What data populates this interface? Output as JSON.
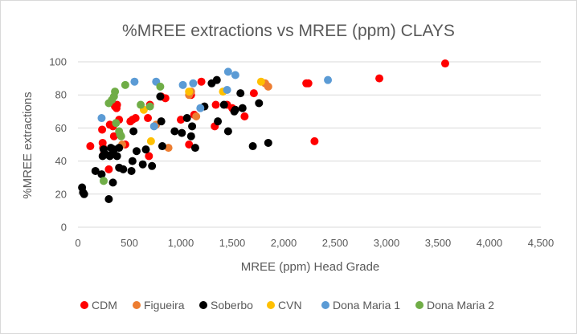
{
  "chart_data": {
    "type": "scatter",
    "title": "%MREE extractions vs MREE (ppm) CLAYS",
    "xlabel": "MREE (ppm) Head Grade",
    "ylabel": "%MREE extractions",
    "xlim": [
      0,
      4500
    ],
    "ylim": [
      0,
      100
    ],
    "x_ticks": [
      "0",
      "500",
      "1,000",
      "1,500",
      "2,000",
      "2,500",
      "3,000",
      "3,500",
      "4,000",
      "4,500"
    ],
    "y_ticks": [
      "0",
      "20",
      "40",
      "60",
      "80",
      "100"
    ],
    "grid": true,
    "legend_position": "bottom",
    "series": [
      {
        "name": "CDM",
        "color": "#ff0000",
        "points": [
          [
            120,
            49
          ],
          [
            235,
            59
          ],
          [
            240,
            51
          ],
          [
            245,
            48
          ],
          [
            250,
            44
          ],
          [
            300,
            35
          ],
          [
            310,
            62
          ],
          [
            340,
            61
          ],
          [
            350,
            55
          ],
          [
            360,
            73
          ],
          [
            375,
            72
          ],
          [
            380,
            74
          ],
          [
            400,
            65
          ],
          [
            460,
            50
          ],
          [
            510,
            64
          ],
          [
            530,
            65
          ],
          [
            560,
            66
          ],
          [
            680,
            66
          ],
          [
            690,
            43
          ],
          [
            700,
            74
          ],
          [
            810,
            79
          ],
          [
            850,
            78
          ],
          [
            1000,
            65
          ],
          [
            1080,
            50
          ],
          [
            1100,
            80
          ],
          [
            1130,
            68
          ],
          [
            1200,
            88
          ],
          [
            1330,
            61
          ],
          [
            1340,
            74
          ],
          [
            1450,
            74
          ],
          [
            1500,
            72
          ],
          [
            1620,
            67
          ],
          [
            1710,
            81
          ],
          [
            2220,
            87
          ],
          [
            2240,
            87
          ],
          [
            2300,
            52
          ],
          [
            2930,
            90
          ],
          [
            3570,
            99
          ]
        ]
      },
      {
        "name": "Figueira",
        "color": "#ed7d31",
        "points": [
          [
            430,
            50
          ],
          [
            760,
            62
          ],
          [
            880,
            48
          ],
          [
            1080,
            80
          ],
          [
            1100,
            82
          ],
          [
            1150,
            67
          ],
          [
            1820,
            87
          ],
          [
            1850,
            85
          ]
        ]
      },
      {
        "name": "Soberbo",
        "color": "#000000",
        "points": [
          [
            40,
            24
          ],
          [
            50,
            21
          ],
          [
            60,
            20
          ],
          [
            170,
            34
          ],
          [
            230,
            32
          ],
          [
            240,
            43
          ],
          [
            250,
            47
          ],
          [
            270,
            44
          ],
          [
            300,
            17
          ],
          [
            310,
            43
          ],
          [
            320,
            48
          ],
          [
            330,
            44
          ],
          [
            340,
            27
          ],
          [
            350,
            47
          ],
          [
            380,
            43
          ],
          [
            400,
            48
          ],
          [
            400,
            36
          ],
          [
            440,
            35
          ],
          [
            520,
            34
          ],
          [
            530,
            40
          ],
          [
            540,
            58
          ],
          [
            570,
            46
          ],
          [
            630,
            38
          ],
          [
            660,
            47
          ],
          [
            720,
            37
          ],
          [
            800,
            79
          ],
          [
            810,
            64
          ],
          [
            820,
            49
          ],
          [
            940,
            58
          ],
          [
            1010,
            57
          ],
          [
            1060,
            66
          ],
          [
            1100,
            55
          ],
          [
            1110,
            61
          ],
          [
            1140,
            48
          ],
          [
            1230,
            73
          ],
          [
            1300,
            87
          ],
          [
            1350,
            89
          ],
          [
            1360,
            64
          ],
          [
            1420,
            74
          ],
          [
            1460,
            58
          ],
          [
            1520,
            70
          ],
          [
            1530,
            71
          ],
          [
            1580,
            81
          ],
          [
            1600,
            72
          ],
          [
            1700,
            49
          ],
          [
            1760,
            75
          ],
          [
            1850,
            51
          ]
        ]
      },
      {
        "name": "CVN",
        "color": "#ffc000",
        "points": [
          [
            640,
            71
          ],
          [
            710,
            52
          ],
          [
            1080,
            82
          ],
          [
            1410,
            82
          ],
          [
            1780,
            88
          ]
        ]
      },
      {
        "name": "Dona Maria 1",
        "color": "#5b9bd5",
        "points": [
          [
            230,
            66
          ],
          [
            550,
            88
          ],
          [
            740,
            61
          ],
          [
            760,
            88
          ],
          [
            1020,
            86
          ],
          [
            1120,
            87
          ],
          [
            1190,
            72
          ],
          [
            1450,
            83
          ],
          [
            1460,
            94
          ],
          [
            1530,
            92
          ],
          [
            2430,
            89
          ]
        ]
      },
      {
        "name": "Dona Maria 2",
        "color": "#70ad47",
        "points": [
          [
            250,
            28
          ],
          [
            300,
            75
          ],
          [
            330,
            77
          ],
          [
            350,
            79
          ],
          [
            360,
            82
          ],
          [
            370,
            63
          ],
          [
            400,
            58
          ],
          [
            410,
            56
          ],
          [
            420,
            55
          ],
          [
            460,
            86
          ],
          [
            610,
            74
          ],
          [
            700,
            73
          ],
          [
            800,
            85
          ]
        ]
      }
    ]
  }
}
